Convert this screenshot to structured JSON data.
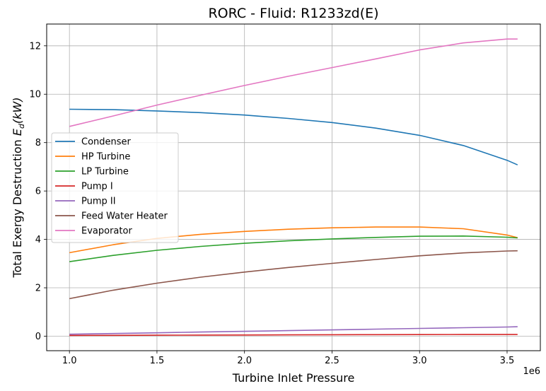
{
  "chart_data": {
    "type": "line",
    "title": "RORC - Fluid: R1233zd(E)",
    "xlabel": "Turbine Inlet Pressure",
    "ylabel": "Total Exergy Destruction ",
    "ylabel_math": "E",
    "ylabel_sub": "d",
    "ylabel_units": "(kW)",
    "x_offset_label": "1e6",
    "xlim": [
      0.87,
      3.69
    ],
    "ylim": [
      -0.6,
      12.9
    ],
    "x_ticks": [
      1.0,
      1.5,
      2.0,
      2.5,
      3.0,
      3.5
    ],
    "x_tick_labels": [
      "1.0",
      "1.5",
      "2.0",
      "2.5",
      "3.0",
      "3.5"
    ],
    "y_ticks": [
      0,
      2,
      4,
      6,
      8,
      10,
      12
    ],
    "y_tick_labels": [
      "0",
      "2",
      "4",
      "6",
      "8",
      "10",
      "12"
    ],
    "grid": true,
    "legend_position": "center-left",
    "x": [
      1.0,
      1.25,
      1.5,
      1.75,
      2.0,
      2.25,
      2.5,
      2.75,
      3.0,
      3.25,
      3.5,
      3.56
    ],
    "series": [
      {
        "name": "Condenser",
        "color": "#1f77b4",
        "values": [
          9.38,
          9.36,
          9.31,
          9.24,
          9.14,
          9.0,
          8.83,
          8.6,
          8.3,
          7.88,
          7.27,
          7.08
        ]
      },
      {
        "name": "HP Turbine",
        "color": "#ff7f0e",
        "values": [
          3.45,
          3.78,
          4.04,
          4.21,
          4.33,
          4.42,
          4.48,
          4.51,
          4.51,
          4.44,
          4.18,
          4.07
        ]
      },
      {
        "name": "LP Turbine",
        "color": "#2ca02c",
        "values": [
          3.08,
          3.34,
          3.55,
          3.71,
          3.84,
          3.94,
          4.02,
          4.08,
          4.13,
          4.14,
          4.09,
          4.06
        ]
      },
      {
        "name": "Pump I",
        "color": "#d62728",
        "values": [
          0.03,
          0.035,
          0.04,
          0.045,
          0.05,
          0.055,
          0.06,
          0.063,
          0.066,
          0.068,
          0.07,
          0.07
        ]
      },
      {
        "name": "Pump II",
        "color": "#9467bd",
        "values": [
          0.08,
          0.11,
          0.14,
          0.17,
          0.2,
          0.23,
          0.26,
          0.29,
          0.32,
          0.35,
          0.38,
          0.39
        ]
      },
      {
        "name": "Feed Water Heater",
        "color": "#8c564b",
        "values": [
          1.55,
          1.9,
          2.19,
          2.44,
          2.65,
          2.84,
          3.01,
          3.17,
          3.32,
          3.44,
          3.52,
          3.53
        ]
      },
      {
        "name": "Evaporator",
        "color": "#e377c2",
        "values": [
          8.67,
          9.1,
          9.55,
          9.96,
          10.36,
          10.74,
          11.1,
          11.46,
          11.83,
          12.12,
          12.28,
          12.28
        ]
      }
    ]
  }
}
